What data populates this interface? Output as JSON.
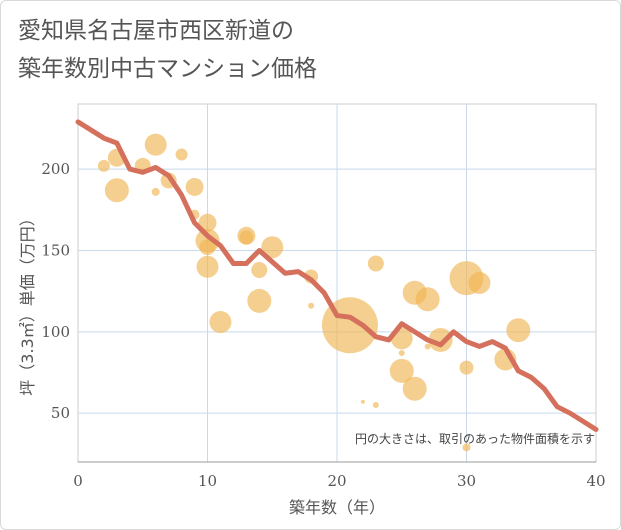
{
  "title_lines": [
    "愛知県名古屋市西区新道の",
    "築年数別中古マンション価格"
  ],
  "colors": {
    "line": "#d4705c",
    "bubble": "#f0b653",
    "grid": "#c9d9ea",
    "axis": "#999999"
  },
  "chart_data": {
    "type": "scatter",
    "xlabel": "築年数（年）",
    "ylabel": "坪（3.3㎡）単価（万円）",
    "xlim": [
      0,
      40
    ],
    "ylim": [
      20,
      240
    ],
    "xticks": [
      0,
      10,
      20,
      30,
      40
    ],
    "yticks": [
      50,
      100,
      150,
      200
    ],
    "note": "円の大きさは、取引のあった物件面積を示す",
    "line_series": {
      "x": [
        0,
        1,
        2,
        3,
        4,
        5,
        6,
        7,
        8,
        9,
        10,
        11,
        12,
        13,
        14,
        15,
        16,
        17,
        18,
        19,
        20,
        21,
        22,
        23,
        24,
        25,
        26,
        27,
        28,
        29,
        30,
        31,
        32,
        33,
        34,
        35,
        36,
        37,
        38,
        39,
        40
      ],
      "y": [
        229,
        224,
        219,
        216,
        200,
        198,
        201,
        196,
        184,
        167,
        159,
        153,
        142,
        142,
        150,
        143,
        136,
        137,
        132,
        124,
        110,
        109,
        104,
        97,
        95,
        105,
        100,
        95,
        92,
        100,
        94,
        91,
        94,
        90,
        76,
        72,
        65,
        54,
        50,
        45,
        40
      ]
    },
    "bubbles": [
      {
        "x": 2,
        "y": 202,
        "s": 6
      },
      {
        "x": 3,
        "y": 207,
        "s": 9
      },
      {
        "x": 3,
        "y": 187,
        "s": 12
      },
      {
        "x": 5,
        "y": 202,
        "s": 8
      },
      {
        "x": 6,
        "y": 215,
        "s": 11
      },
      {
        "x": 6,
        "y": 186,
        "s": 4
      },
      {
        "x": 7,
        "y": 193,
        "s": 8
      },
      {
        "x": 8,
        "y": 209,
        "s": 6
      },
      {
        "x": 9,
        "y": 189,
        "s": 9
      },
      {
        "x": 9,
        "y": 172,
        "s": 5
      },
      {
        "x": 10,
        "y": 167,
        "s": 9
      },
      {
        "x": 10,
        "y": 156,
        "s": 12
      },
      {
        "x": 10,
        "y": 152,
        "s": 8
      },
      {
        "x": 10,
        "y": 140,
        "s": 11
      },
      {
        "x": 11,
        "y": 106,
        "s": 11
      },
      {
        "x": 13,
        "y": 159,
        "s": 9
      },
      {
        "x": 13,
        "y": 158,
        "s": 7
      },
      {
        "x": 14,
        "y": 138,
        "s": 8
      },
      {
        "x": 14,
        "y": 119,
        "s": 12
      },
      {
        "x": 15,
        "y": 152,
        "s": 11
      },
      {
        "x": 18,
        "y": 134,
        "s": 7
      },
      {
        "x": 18,
        "y": 116,
        "s": 3
      },
      {
        "x": 21,
        "y": 104,
        "s": 28
      },
      {
        "x": 22,
        "y": 57,
        "s": 2
      },
      {
        "x": 23,
        "y": 142,
        "s": 8
      },
      {
        "x": 23,
        "y": 55,
        "s": 3
      },
      {
        "x": 25,
        "y": 96,
        "s": 11
      },
      {
        "x": 25,
        "y": 76,
        "s": 12
      },
      {
        "x": 25,
        "y": 87,
        "s": 3
      },
      {
        "x": 26,
        "y": 124,
        "s": 12
      },
      {
        "x": 26,
        "y": 65,
        "s": 12
      },
      {
        "x": 27,
        "y": 120,
        "s": 12
      },
      {
        "x": 27,
        "y": 91,
        "s": 3
      },
      {
        "x": 28,
        "y": 95,
        "s": 12
      },
      {
        "x": 30,
        "y": 133,
        "s": 17
      },
      {
        "x": 30,
        "y": 78,
        "s": 7
      },
      {
        "x": 30,
        "y": 29,
        "s": 4
      },
      {
        "x": 31,
        "y": 130,
        "s": 11
      },
      {
        "x": 33,
        "y": 83,
        "s": 11
      },
      {
        "x": 34,
        "y": 101,
        "s": 12
      }
    ]
  }
}
